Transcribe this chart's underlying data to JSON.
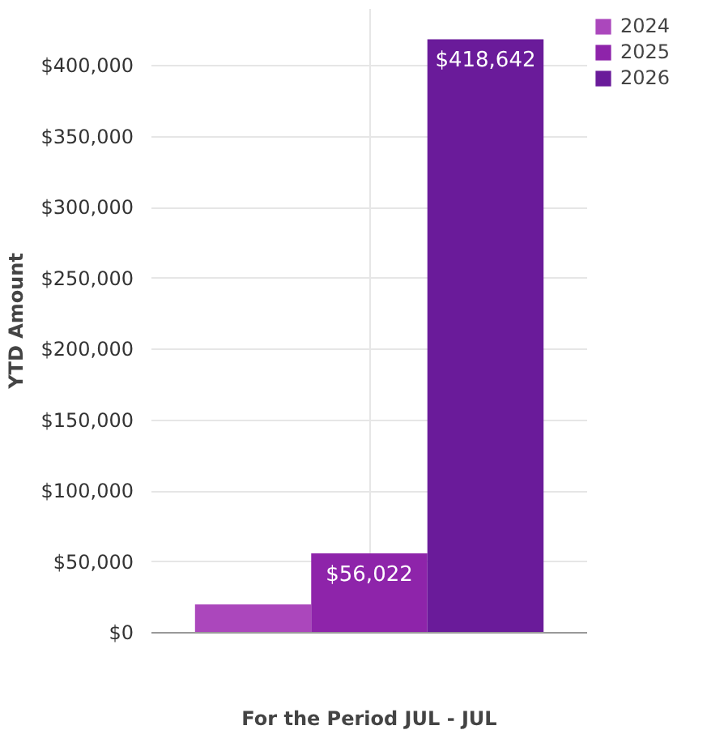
{
  "chart_data": {
    "type": "bar",
    "xlabel": "For the Period JUL - JUL",
    "ylabel": "YTD Amount",
    "categories": [
      null
    ],
    "series": [
      {
        "name": "2024",
        "color": "#ab47bc",
        "values": [
          20000
        ],
        "value_labels": [
          null
        ]
      },
      {
        "name": "2025",
        "color": "#8e24aa",
        "values": [
          56022
        ],
        "value_labels": [
          "$56,022"
        ]
      },
      {
        "name": "2026",
        "color": "#6a1b9a",
        "values": [
          418642
        ],
        "value_labels": [
          "$418,642"
        ]
      }
    ],
    "ylim": [
      0,
      440000
    ],
    "yticks": [
      {
        "value": 0,
        "label": "$0"
      },
      {
        "value": 50000,
        "label": "$50,000"
      },
      {
        "value": 100000,
        "label": "$100,000"
      },
      {
        "value": 150000,
        "label": "$150,000"
      },
      {
        "value": 200000,
        "label": "$200,000"
      },
      {
        "value": 250000,
        "label": "$250,000"
      },
      {
        "value": 300000,
        "label": "$300,000"
      },
      {
        "value": 350000,
        "label": "$350,000"
      },
      {
        "value": 400000,
        "label": "$400,000"
      }
    ],
    "grid": true,
    "legend": "top right"
  }
}
